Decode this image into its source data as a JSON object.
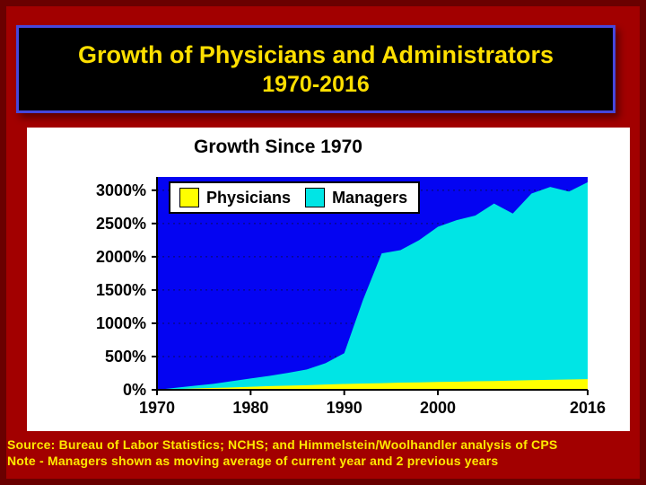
{
  "slide": {
    "title_line1": "Growth of Physicians and Administrators",
    "title_line2": "1970-2016",
    "source_line1": "Source: Bureau of Labor Statistics; NCHS; and Himmelstein/Woolhandler analysis of CPS",
    "source_line2": "Note - Managers shown as moving average of current year and 2 previous years"
  },
  "chart_data": {
    "type": "area",
    "title": "Growth Since 1970",
    "x": [
      1970,
      1972,
      1974,
      1976,
      1978,
      1980,
      1982,
      1984,
      1986,
      1988,
      1990,
      1992,
      1994,
      1996,
      1998,
      2000,
      2002,
      2004,
      2006,
      2008,
      2010,
      2012,
      2014,
      2016
    ],
    "series": [
      {
        "name": "Physicians",
        "color": "#ffff00",
        "values": [
          0,
          10,
          20,
          28,
          35,
          45,
          55,
          62,
          70,
          80,
          88,
          95,
          100,
          108,
          112,
          118,
          122,
          128,
          132,
          138,
          145,
          150,
          155,
          160
        ]
      },
      {
        "name": "Managers",
        "color": "#00e5e5",
        "values": [
          0,
          30,
          60,
          90,
          130,
          170,
          210,
          255,
          305,
          400,
          550,
          1350,
          2050,
          2100,
          2250,
          2450,
          2550,
          2620,
          2800,
          2650,
          2950,
          3050,
          2980,
          3120
        ]
      }
    ],
    "x_ticks": [
      1970,
      1980,
      1990,
      2000,
      2016
    ],
    "y_tick_values": [
      3000,
      2500,
      2000,
      1500,
      1000,
      500,
      0
    ],
    "y_tick_labels": [
      "3000%",
      "2500%",
      "2000%",
      "1500%",
      "1000%",
      "500%",
      "0%"
    ],
    "gridlines": [
      500,
      1000,
      1500,
      2000,
      2500,
      3000
    ],
    "xlim": [
      1970,
      2016
    ],
    "ylim": [
      0,
      3200
    ],
    "plot_bg": "#0404f2",
    "grid_color": "#0a0a60",
    "axis_color": "#000000",
    "legend_position": "top-left-inside",
    "xlabel": "",
    "ylabel": ""
  }
}
